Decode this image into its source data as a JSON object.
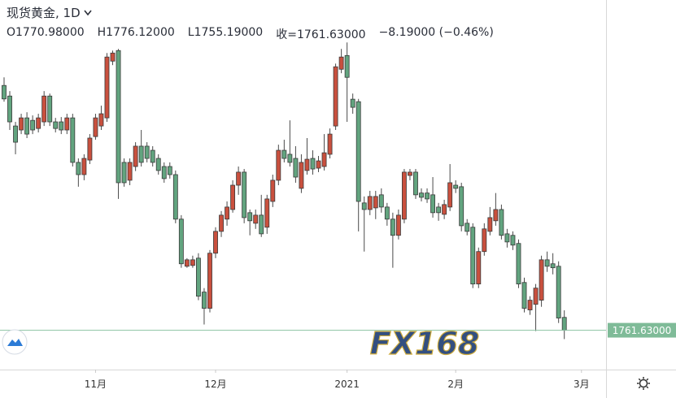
{
  "chart_data": {
    "type": "candlestick",
    "title": "现货黄金, 1D",
    "legend_text": [
      "O1770.98000",
      "H1776.12000",
      "L1755.19000",
      "收=1761.63000",
      "−8.19000 (−0.46%)"
    ],
    "watermark": "FX168",
    "up_color": "#c9503e",
    "down_color": "#62a47f",
    "open": [
      1939.8,
      1932.1,
      1910.3,
      1907.4,
      1916.2,
      1914.4,
      1908.5,
      1913.3,
      1932.1,
      1913.3,
      1913.3,
      1907.4,
      1916.2,
      1883.8,
      1874.9,
      1885.5,
      1902.6,
      1910.3,
      1916.2,
      1957.5,
      1965.2,
      1883.8,
      1870.8,
      1880.8,
      1895.6,
      1895.6,
      1892.6,
      1886.7,
      1880.8,
      1880.8,
      1874.9,
      1842.5,
      1808.2,
      1808.8,
      1814.1,
      1789.4,
      1777.6,
      1817.7,
      1833.6,
      1842.5,
      1849.5,
      1867.2,
      1876.7,
      1847.2,
      1839.5,
      1845.4,
      1836.6,
      1855.4,
      1870.8,
      1892.6,
      1889.7,
      1886.7,
      1864.9,
      1877.9,
      1886.7,
      1879.6,
      1880.8,
      1889.7,
      1910.3,
      1951.6,
      1961.6,
      1929.8,
      1928.0,
      1854.3,
      1849.5,
      1850.7,
      1860.2,
      1851.3,
      1842.5,
      1830.7,
      1842.5,
      1874.3,
      1876.7,
      1861.5,
      1861.5,
      1860.2,
      1851.3,
      1846.0,
      1851.3,
      1867.2,
      1866.1,
      1839.5,
      1836.6,
      1795.3,
      1818.9,
      1833.6,
      1841.3,
      1849.5,
      1831.8,
      1830.7,
      1824.8,
      1796.4,
      1776.4,
      1780.5,
      1783.5,
      1812.9,
      1810.0,
      1808.2,
      1770.98
    ],
    "high": [
      1945.7,
      1935.7,
      1913.3,
      1919.2,
      1920.3,
      1918.0,
      1919.2,
      1935.7,
      1933.9,
      1916.2,
      1916.8,
      1919.2,
      1919.2,
      1886.7,
      1889.7,
      1904.4,
      1919.2,
      1925.1,
      1963.4,
      1965.2,
      1966.4,
      1886.7,
      1886.7,
      1898.5,
      1907.4,
      1898.5,
      1895.6,
      1889.7,
      1883.8,
      1883.8,
      1877.9,
      1845.4,
      1814.1,
      1815.9,
      1817.7,
      1792.3,
      1820.0,
      1836.6,
      1848.4,
      1855.4,
      1870.8,
      1880.8,
      1879.0,
      1849.5,
      1849.5,
      1860.2,
      1860.2,
      1874.9,
      1896.7,
      1900.3,
      1914.4,
      1895.6,
      1889.7,
      1901.5,
      1892.6,
      1888.5,
      1904.4,
      1908.5,
      1955.7,
      1966.4,
      1971.1,
      1933.9,
      1930.0,
      1859.0,
      1863.1,
      1863.1,
      1864.9,
      1854.3,
      1847.2,
      1849.5,
      1879.0,
      1879.0,
      1879.0,
      1864.9,
      1864.9,
      1873.1,
      1854.3,
      1856.6,
      1882.6,
      1870.8,
      1869.0,
      1842.5,
      1839.5,
      1821.8,
      1839.5,
      1851.3,
      1861.5,
      1853.1,
      1835.4,
      1833.6,
      1827.7,
      1799.9,
      1786.4,
      1795.3,
      1815.9,
      1818.9,
      1817.7,
      1811.8,
      1776.12
    ],
    "low": [
      1928.0,
      1907.4,
      1889.7,
      1904.4,
      1901.5,
      1904.4,
      1905.6,
      1910.3,
      1910.3,
      1905.6,
      1904.4,
      1904.4,
      1880.8,
      1866.1,
      1870.8,
      1882.6,
      1900.3,
      1907.4,
      1913.3,
      1954.6,
      1857.2,
      1866.1,
      1867.2,
      1877.5,
      1880.8,
      1883.8,
      1880.8,
      1874.9,
      1869.0,
      1872.0,
      1839.5,
      1807.1,
      1807.1,
      1807.1,
      1783.5,
      1765.8,
      1774.6,
      1814.1,
      1829.5,
      1837.7,
      1847.2,
      1860.2,
      1839.5,
      1830.7,
      1835.4,
      1829.5,
      1831.8,
      1851.3,
      1867.2,
      1883.8,
      1880.8,
      1869.0,
      1861.5,
      1874.9,
      1874.9,
      1876.7,
      1877.9,
      1886.7,
      1907.4,
      1948.7,
      1913.3,
      1919.2,
      1833.6,
      1818.9,
      1845.4,
      1842.5,
      1847.2,
      1837.7,
      1807.1,
      1827.7,
      1839.5,
      1870.8,
      1857.2,
      1855.4,
      1854.3,
      1843.6,
      1841.3,
      1842.5,
      1848.4,
      1861.5,
      1833.6,
      1830.7,
      1792.3,
      1792.3,
      1815.9,
      1830.7,
      1837.7,
      1827.7,
      1821.8,
      1820.0,
      1792.3,
      1774.6,
      1772.8,
      1761.0,
      1778.7,
      1804.1,
      1802.3,
      1766.9,
      1755.19
    ],
    "close": [
      1930.0,
      1913.3,
      1898.5,
      1916.2,
      1904.4,
      1907.4,
      1916.2,
      1932.1,
      1913.3,
      1908.5,
      1907.4,
      1916.2,
      1883.8,
      1874.9,
      1886.7,
      1901.5,
      1916.2,
      1919.2,
      1960.5,
      1963.4,
      1869.0,
      1869.0,
      1883.8,
      1895.6,
      1883.8,
      1886.7,
      1883.8,
      1877.9,
      1872.0,
      1874.9,
      1842.5,
      1810.0,
      1812.9,
      1812.9,
      1786.4,
      1777.6,
      1817.7,
      1833.6,
      1845.4,
      1851.3,
      1867.2,
      1876.7,
      1843.6,
      1841.3,
      1845.4,
      1831.8,
      1857.2,
      1870.8,
      1892.6,
      1886.7,
      1883.8,
      1873.1,
      1883.8,
      1886.1,
      1879.0,
      1884.9,
      1890.8,
      1904.4,
      1953.4,
      1960.5,
      1945.7,
      1923.9,
      1855.4,
      1849.5,
      1859.0,
      1859.0,
      1851.3,
      1842.5,
      1830.7,
      1845.4,
      1876.7,
      1876.7,
      1860.2,
      1858.4,
      1857.2,
      1847.2,
      1847.2,
      1853.1,
      1869.0,
      1864.9,
      1837.7,
      1833.6,
      1795.3,
      1818.9,
      1835.4,
      1843.6,
      1849.5,
      1830.7,
      1825.9,
      1823.6,
      1795.3,
      1777.6,
      1783.5,
      1792.3,
      1812.9,
      1808.2,
      1807.1,
      1770.5,
      1761.63
    ],
    "xlim": [
      -0.71,
      105.3
    ],
    "ylim": [
      1733,
      2002
    ],
    "xticks": [
      {
        "value": 16,
        "label": "11月"
      },
      {
        "value": 37,
        "label": "12月"
      },
      {
        "value": 60,
        "label": "2021"
      },
      {
        "value": 79,
        "label": "2月"
      },
      {
        "value": 101,
        "label": "3月"
      }
    ],
    "last_price": {
      "value": 1761.63,
      "label": "1761.63000"
    }
  }
}
